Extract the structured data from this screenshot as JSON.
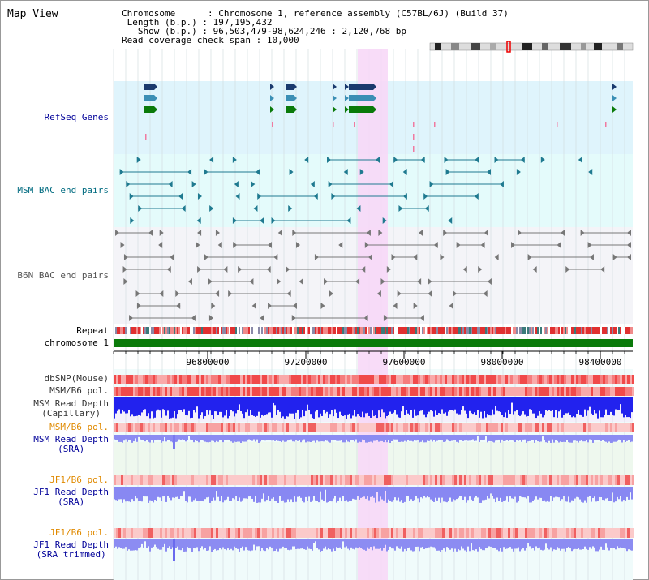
{
  "page": {
    "title": "Map View"
  },
  "info": {
    "chromosome_label": "Chromosome",
    "chromosome_value": "Chromosome 1, reference assembly (C57BL/6J) (Build 37)",
    "length_label": "Length (b.p.)",
    "length_value": "197,195,432",
    "show_label": "Show (b.p.)",
    "show_value": "96,503,479-98,624,246 : 2,120,768 bp",
    "coverage_label": "Read coverage check span",
    "coverage_value": "10,000"
  },
  "tracks": {
    "refseq": "RefSeq Genes",
    "msm_bac": "MSM BAC end pairs",
    "b6n_bac": "B6N BAC end pairs",
    "repeat": "Repeat",
    "chromosome": "chromosome 1",
    "dbsnp": "dbSNP(Mouse)",
    "msm_b6_pol_1": "MSM/B6 pol.",
    "msm_depth_cap_1": "MSM Read Depth",
    "msm_depth_cap_2": "(Capillary)",
    "msm_b6_pol_2": "MSM/B6 pol.",
    "msm_depth_sra_1": "MSM Read Depth",
    "msm_depth_sra_2": "(SRA)",
    "jf1_b6_pol_1": "JF1/B6 pol.",
    "jf1_depth_sra_1": "JF1 Read Depth",
    "jf1_depth_sra_2": "(SRA)",
    "jf1_b6_pol_2": "JF1/B6 pol.",
    "jf1_depth_trim_1": "JF1 Read Depth",
    "jf1_depth_trim_2": "(SRA trimmed)"
  },
  "axis": {
    "ticks": [
      "96800000",
      "97200000",
      "97600000",
      "98000000",
      "98400000"
    ]
  },
  "colors": {
    "refseq_bg": "#dff4fc",
    "bac_bg": "#e4fbfb",
    "highlight": "#f7d8f7",
    "chromosome": "#0a7a0a",
    "depth_capillary": "#2222ee",
    "depth_sra": "#8c8cf2",
    "orange_label": "#e08a00",
    "blue_label": "#000099",
    "teal_label": "#006b80"
  }
}
